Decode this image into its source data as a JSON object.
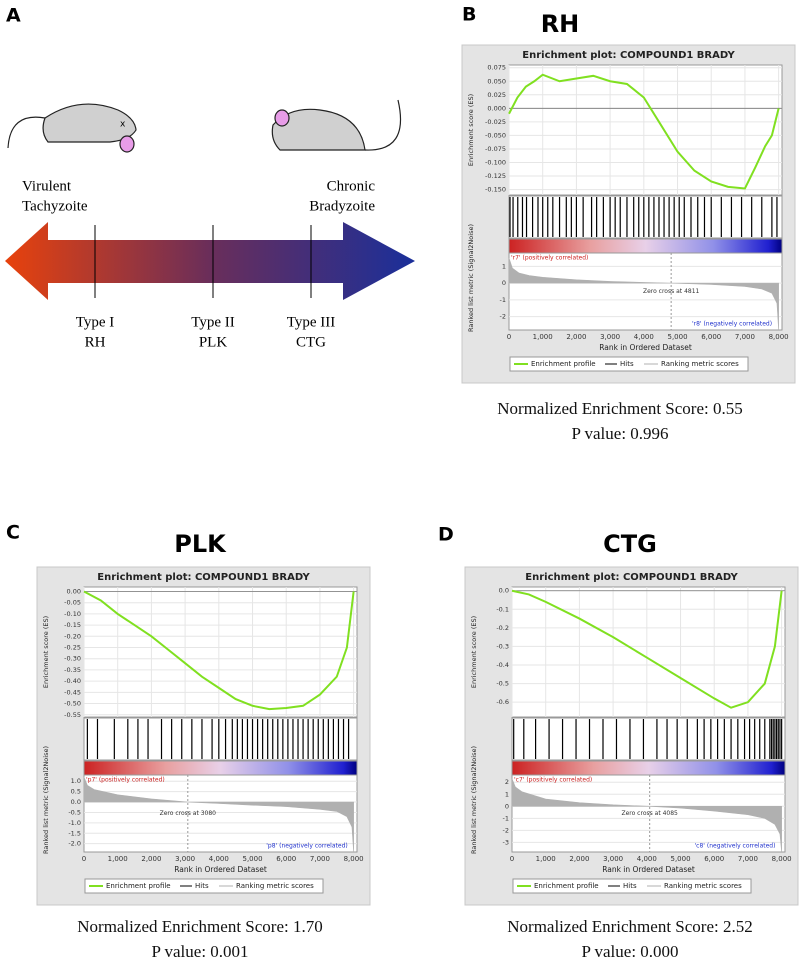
{
  "panel_a": {
    "letter": "A",
    "left_label": [
      "Virulent",
      "Tachyzoite"
    ],
    "right_label": [
      "Chronic",
      "Bradyzoite"
    ],
    "types": [
      {
        "name": "Type I",
        "strain": "RH"
      },
      {
        "name": "Type II",
        "strain": "PLK"
      },
      {
        "name": "Type III",
        "strain": "CTG"
      }
    ]
  },
  "chart_data": [
    {
      "type": "line",
      "panel": "B",
      "title": "RH",
      "subtitle": "Enrichment plot: COMPOUND1 BRADY",
      "ylabel": "Enrichment score (ES)",
      "ranked_ylabel": "Ranked list metric (Signal2Noise)",
      "xlabel": "Rank in Ordered Dataset",
      "xlim": [
        0,
        8100
      ],
      "xticks": [
        0,
        {
          "value": 1000,
          "label": "1,000"
        },
        {
          "value": 2000,
          "label": "2,000"
        },
        {
          "value": 3000,
          "label": "3,000"
        },
        {
          "value": 4000,
          "label": "4,000"
        },
        {
          "value": 5000,
          "label": "5,000"
        },
        {
          "value": 6000,
          "label": "6,000"
        },
        {
          "value": 7000,
          "label": "7,000"
        },
        {
          "value": 8000,
          "label": "8,000"
        }
      ],
      "ylim": [
        -0.16,
        0.08
      ],
      "yticks": [
        0.075,
        {
          "value": 0.05,
          "label": "0.050"
        },
        0.025,
        {
          "value": 0,
          "label": "0.000"
        },
        -0.025,
        {
          "value": -0.05,
          "label": "-0.050"
        },
        -0.075,
        {
          "value": -0.1,
          "label": "-0.100"
        },
        -0.125,
        {
          "value": -0.15,
          "label": "-0.150"
        }
      ],
      "series": [
        {
          "name": "Enrichment profile",
          "color": "#80e020",
          "x": [
            0,
            250,
            500,
            750,
            1000,
            1500,
            2000,
            2500,
            3000,
            3500,
            4000,
            4500,
            5000,
            5500,
            6000,
            6500,
            7000,
            7300,
            7600,
            7800,
            8000
          ],
          "values": [
            -0.01,
            0.02,
            0.04,
            0.05,
            0.062,
            0.05,
            0.055,
            0.06,
            0.05,
            0.045,
            0.02,
            -0.03,
            -0.08,
            -0.115,
            -0.135,
            -0.145,
            -0.148,
            -0.11,
            -0.07,
            -0.05,
            0.0
          ]
        }
      ],
      "hits": {
        "name": "Hits",
        "color": "#000000",
        "x": [
          30,
          120,
          260,
          400,
          520,
          700,
          860,
          1000,
          1150,
          1300,
          1500,
          1700,
          1850,
          2000,
          2200,
          2450,
          2600,
          2800,
          3000,
          3150,
          3300,
          3500,
          3700,
          3850,
          4000,
          4150,
          4300,
          4450,
          4600,
          4750,
          4900,
          5050,
          5200,
          5400,
          5600,
          5800,
          6000,
          6300,
          6600,
          6900,
          7200,
          7500,
          7800,
          7950
        ]
      },
      "ranked": {
        "name": "Ranking metric scores",
        "color": "#b0b0b0",
        "ylim": [
          -2.8,
          1.8
        ],
        "yticks": [
          1,
          0,
          -1,
          -2
        ],
        "x": [
          0,
          100,
          300,
          600,
          1000,
          2000,
          3000,
          4000,
          4811,
          6000,
          7000,
          7500,
          7800,
          7950,
          8000
        ],
        "values": [
          1.5,
          0.9,
          0.6,
          0.45,
          0.35,
          0.2,
          0.1,
          0.04,
          0,
          -0.08,
          -0.2,
          -0.35,
          -0.6,
          -1.2,
          -2.8
        ]
      },
      "zero_cross": 4811,
      "annotations": [
        {
          "text": "'r7' (positively correlated)",
          "color": "#cc2222"
        },
        {
          "text": "Zero cross at 4811",
          "color": "#333333"
        },
        {
          "text": "'r8' (negatively correlated)",
          "color": "#2233cc"
        }
      ],
      "nes_text": "Normalized Enrichment Score:  0.55",
      "p_text": "P value: 0.996"
    },
    {
      "type": "line",
      "panel": "C",
      "title": "PLK",
      "subtitle": "Enrichment plot: COMPOUND1 BRADY",
      "ylabel": "Enrichment score (ES)",
      "ranked_ylabel": "Ranked list metric (Signal2Noise)",
      "xlabel": "Rank in Ordered Dataset",
      "xlim": [
        0,
        8100
      ],
      "xticks": [
        0,
        {
          "value": 1000,
          "label": "1,000"
        },
        {
          "value": 2000,
          "label": "2,000"
        },
        {
          "value": 3000,
          "label": "3,000"
        },
        {
          "value": 4000,
          "label": "4,000"
        },
        {
          "value": 5000,
          "label": "5,000"
        },
        {
          "value": 6000,
          "label": "6,000"
        },
        {
          "value": 7000,
          "label": "7,000"
        },
        {
          "value": 8000,
          "label": "8,000"
        }
      ],
      "ylim": [
        -0.56,
        0.02
      ],
      "yticks": [
        {
          "value": 0,
          "label": "0.00"
        },
        -0.05,
        {
          "value": -0.1,
          "label": "-0.10"
        },
        -0.15,
        {
          "value": -0.2,
          "label": "-0.20"
        },
        -0.25,
        {
          "value": -0.3,
          "label": "-0.30"
        },
        -0.35,
        {
          "value": -0.4,
          "label": "-0.40"
        },
        -0.45,
        {
          "value": -0.5,
          "label": "-0.50"
        },
        -0.55
      ],
      "series": [
        {
          "name": "Enrichment profile",
          "color": "#80e020",
          "x": [
            0,
            500,
            1000,
            1500,
            2000,
            2500,
            3000,
            3500,
            4000,
            4500,
            5000,
            5500,
            6000,
            6500,
            7000,
            7500,
            7800,
            8000
          ],
          "values": [
            0,
            -0.04,
            -0.1,
            -0.15,
            -0.2,
            -0.26,
            -0.32,
            -0.38,
            -0.43,
            -0.48,
            -0.51,
            -0.525,
            -0.52,
            -0.51,
            -0.46,
            -0.38,
            -0.25,
            0
          ]
        }
      ],
      "hits": {
        "name": "Hits",
        "color": "#000000",
        "x": [
          100,
          400,
          900,
          1300,
          1600,
          1900,
          2300,
          2600,
          2900,
          3200,
          3500,
          3800,
          4000,
          4200,
          4400,
          4550,
          4700,
          4850,
          5000,
          5150,
          5300,
          5450,
          5600,
          5750,
          5900,
          6050,
          6200,
          6350,
          6500,
          6650,
          6800,
          6950,
          7100,
          7250,
          7400,
          7550,
          7700,
          7850
        ]
      },
      "ranked": {
        "name": "Ranking metric scores",
        "color": "#b0b0b0",
        "ylim": [
          -2.4,
          1.3
        ],
        "yticks": [
          {
            "value": 1,
            "label": "1.0"
          },
          0.5,
          {
            "value": 0,
            "label": "0.0"
          },
          -0.5,
          {
            "value": -1,
            "label": "-1.0"
          },
          -1.5,
          {
            "value": -2,
            "label": "-2.0"
          }
        ],
        "x": [
          0,
          100,
          300,
          1000,
          2000,
          3080,
          4000,
          5000,
          6000,
          7000,
          7500,
          7800,
          7950,
          8000
        ],
        "values": [
          1.2,
          0.8,
          0.6,
          0.35,
          0.15,
          0,
          -0.07,
          -0.15,
          -0.22,
          -0.35,
          -0.45,
          -0.7,
          -1.2,
          -2.4
        ]
      },
      "zero_cross": 3080,
      "annotations": [
        {
          "text": "'p7' (positively correlated)",
          "color": "#cc2222"
        },
        {
          "text": "Zero cross at 3080",
          "color": "#333333"
        },
        {
          "text": "'p8' (negatively correlated)",
          "color": "#2233cc"
        }
      ],
      "nes_text": "Normalized Enrichment Score:  1.70",
      "p_text": "P value: 0.001"
    },
    {
      "type": "line",
      "panel": "D",
      "title": "CTG",
      "subtitle": "Enrichment plot: COMPOUND1 BRADY",
      "ylabel": "Enrichment score (ES)",
      "ranked_ylabel": "Ranked list metric (Signal2Noise)",
      "xlabel": "Rank in Ordered Dataset",
      "xlim": [
        0,
        8100
      ],
      "xticks": [
        0,
        {
          "value": 1000,
          "label": "1,000"
        },
        {
          "value": 2000,
          "label": "2,000"
        },
        {
          "value": 3000,
          "label": "3,000"
        },
        {
          "value": 4000,
          "label": "4,000"
        },
        {
          "value": 5000,
          "label": "5,000"
        },
        {
          "value": 6000,
          "label": "6,000"
        },
        {
          "value": 7000,
          "label": "7,000"
        },
        {
          "value": 8000,
          "label": "8,000"
        }
      ],
      "ylim": [
        -0.68,
        0.02
      ],
      "yticks": [
        {
          "value": 0,
          "label": "0.0"
        },
        -0.1,
        -0.2,
        -0.3,
        -0.4,
        -0.5,
        -0.6
      ],
      "series": [
        {
          "name": "Enrichment profile",
          "color": "#80e020",
          "x": [
            0,
            500,
            1000,
            2000,
            3000,
            4000,
            5000,
            6000,
            6500,
            7000,
            7500,
            7800,
            8000
          ],
          "values": [
            0,
            -0.02,
            -0.06,
            -0.15,
            -0.25,
            -0.36,
            -0.47,
            -0.58,
            -0.63,
            -0.6,
            -0.5,
            -0.3,
            0
          ]
        }
      ],
      "hits": {
        "name": "Hits",
        "color": "#000000",
        "x": [
          50,
          350,
          700,
          1100,
          1500,
          1900,
          2300,
          2700,
          3100,
          3500,
          3900,
          4300,
          4600,
          4900,
          5200,
          5500,
          5700,
          5900,
          6100,
          6300,
          6500,
          6700,
          6900,
          7050,
          7200,
          7350,
          7500,
          7650,
          7700,
          7750,
          7800,
          7850,
          7900,
          7950,
          8000
        ]
      },
      "ranked": {
        "name": "Ranking metric scores",
        "color": "#b0b0b0",
        "ylim": [
          -3.8,
          2.6
        ],
        "yticks": [
          2,
          1,
          0,
          -1,
          -2,
          -3
        ],
        "x": [
          0,
          100,
          300,
          1000,
          2000,
          3000,
          4085,
          5000,
          6000,
          7000,
          7500,
          7800,
          7950,
          8000
        ],
        "values": [
          2.3,
          1.6,
          1.2,
          0.6,
          0.3,
          0.12,
          0,
          -0.15,
          -0.4,
          -0.7,
          -1,
          -1.5,
          -2.3,
          -3.8
        ]
      },
      "zero_cross": 4085,
      "annotations": [
        {
          "text": "'c7' (positively correlated)",
          "color": "#cc2222"
        },
        {
          "text": "Zero cross at 4085",
          "color": "#333333"
        },
        {
          "text": "'c8' (negatively correlated)",
          "color": "#2233cc"
        }
      ],
      "nes_text": "Normalized Enrichment Score:  2.52",
      "p_text": "P value: 0.000"
    }
  ]
}
